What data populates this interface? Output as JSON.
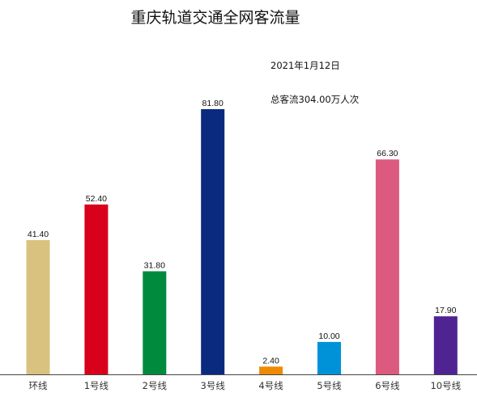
{
  "chart_data": {
    "type": "bar",
    "title": "重庆轨道交通全网客流量",
    "annotations": [
      "2021年1月12日",
      "总客流304.00万人次"
    ],
    "categories": [
      "环线",
      "1号线",
      "2号线",
      "3号线",
      "4号线",
      "5号线",
      "6号线",
      "10号线"
    ],
    "values": [
      41.4,
      52.4,
      31.8,
      81.8,
      2.4,
      10.0,
      66.3,
      17.9
    ],
    "value_labels": [
      "41.40",
      "52.40",
      "31.80",
      "81.80",
      "2.40",
      "10.00",
      "66.30",
      "17.90"
    ],
    "colors": [
      "#d9c27f",
      "#d9001b",
      "#008a3e",
      "#0a2a80",
      "#ee8a00",
      "#0092d8",
      "#dc5a7e",
      "#502392"
    ],
    "ylim": [
      0,
      81.8
    ],
    "grid": false,
    "legend": "none",
    "xlabel": "",
    "ylabel": ""
  }
}
